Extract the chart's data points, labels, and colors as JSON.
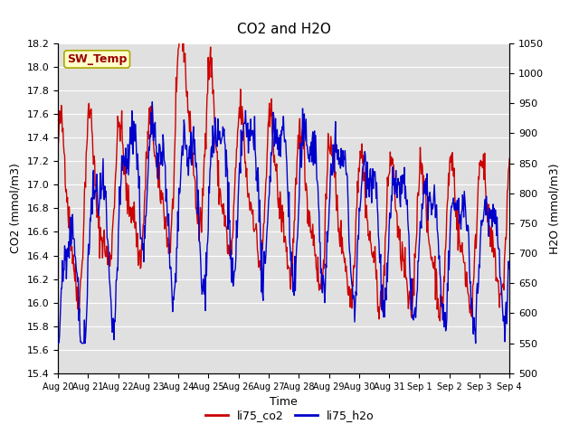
{
  "title": "CO2 and H2O",
  "xlabel": "Time",
  "ylabel_left": "CO2 (mmol/m3)",
  "ylabel_right": "H2O (mmol/m3)",
  "ylim_left": [
    15.4,
    18.2
  ],
  "ylim_right": [
    500,
    1050
  ],
  "yticks_left": [
    15.4,
    15.6,
    15.8,
    16.0,
    16.2,
    16.4,
    16.6,
    16.8,
    17.0,
    17.2,
    17.4,
    17.6,
    17.8,
    18.0,
    18.2
  ],
  "yticks_right": [
    500,
    550,
    600,
    650,
    700,
    750,
    800,
    850,
    900,
    950,
    1000,
    1050
  ],
  "x_tick_labels": [
    "Aug 20",
    "Aug 21",
    "Aug 22",
    "Aug 23",
    "Aug 24",
    "Aug 25",
    "Aug 26",
    "Aug 27",
    "Aug 28",
    "Aug 29",
    "Aug 30",
    "Aug 31",
    "Sep 1",
    "Sep 2",
    "Sep 3",
    "Sep 4"
  ],
  "co2_color": "#cc0000",
  "h2o_color": "#0000cc",
  "legend_co2": "li75_co2",
  "legend_h2o": "li75_h2o",
  "annotation_text": "SW_Temp",
  "annotation_bg": "#ffffcc",
  "annotation_border": "#aaa800",
  "plot_bg_color": "#e0e0e0",
  "fig_bg_color": "#ffffff",
  "grid_color": "#ffffff",
  "linewidth": 1.0,
  "seed": 42,
  "n_points": 800,
  "days": 15
}
